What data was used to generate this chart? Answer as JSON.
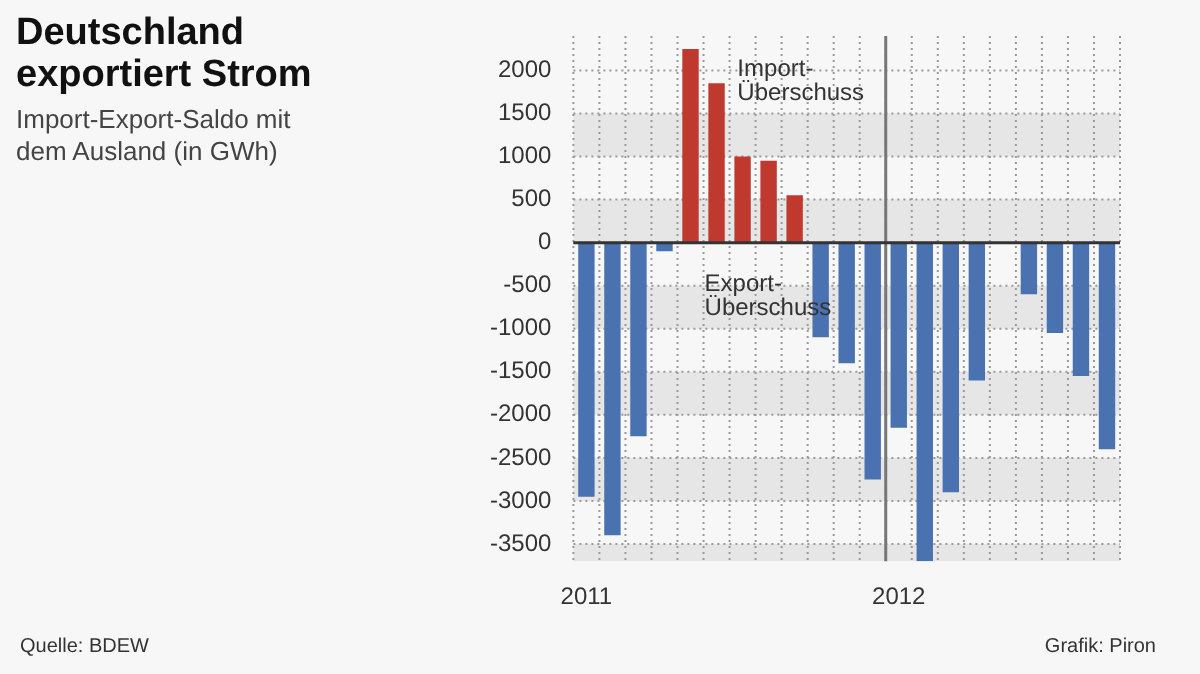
{
  "chart_data": {
    "type": "bar",
    "title": "Deutschland exportiert Strom",
    "subtitle": "Import-Export-Saldo mit dem Ausland (in GWh)",
    "categories": [
      "2011",
      null,
      null,
      null,
      null,
      null,
      null,
      null,
      null,
      null,
      null,
      null,
      "2012",
      null,
      null,
      null,
      null,
      null,
      null,
      null,
      null
    ],
    "values": [
      -2950,
      -3400,
      -2250,
      -100,
      2250,
      1850,
      1000,
      950,
      550,
      -1100,
      -1400,
      -2750,
      -2150,
      -3700,
      -2900,
      -1600,
      null,
      -600,
      -1050,
      -1550,
      -2400
    ],
    "colors": [
      "#4a72b0",
      "#4a72b0",
      "#4a72b0",
      "#4a72b0",
      "#c0392f",
      "#c0392f",
      "#c0392f",
      "#c0392f",
      "#c0392f",
      "#4a72b0",
      "#4a72b0",
      "#4a72b0",
      "#4a72b0",
      "#4a72b0",
      "#4a72b0",
      "#4a72b0",
      "#4a72b0",
      "#4a72b0",
      "#4a72b0",
      "#4a72b0",
      "#4a72b0"
    ],
    "ylim": [
      -3700,
      2400
    ],
    "yticks": [
      -3500,
      -3000,
      -2500,
      -2000,
      -1500,
      -1000,
      -500,
      0,
      500,
      1000,
      1500,
      2000
    ],
    "grid": true,
    "legend": false,
    "ref_lines": [
      {
        "axis": "x",
        "value": "2012",
        "color": "#777777"
      }
    ],
    "annotations": [
      "Import-\nÜberschuss",
      "Export-\nÜberschuss",
      "Quelle: BDEW",
      "Grafik: Piron"
    ]
  }
}
